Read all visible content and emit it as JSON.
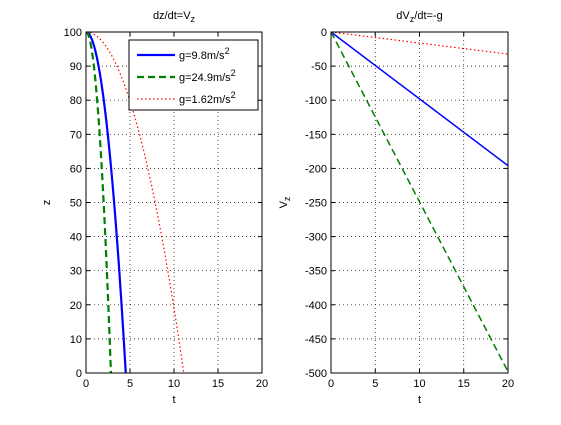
{
  "chart_data": [
    {
      "type": "line",
      "title": "dz/dt=V",
      "title_sub": "z",
      "xlabel": "t",
      "ylabel": "z",
      "ylabel_sub": "",
      "xlim": [
        0,
        20
      ],
      "ylim": [
        0,
        100
      ],
      "xticks": [
        0,
        5,
        10,
        15,
        20
      ],
      "yticks": [
        0,
        10,
        20,
        30,
        40,
        50,
        60,
        70,
        80,
        90,
        100
      ],
      "grid": true,
      "legend": {
        "location": "top-right",
        "entries": [
          {
            "base": "g=9.8m/s",
            "sup": "2"
          },
          {
            "base": "g=24.9m/s",
            "sup": "2"
          },
          {
            "base": "g=1.62m/s",
            "sup": "2"
          }
        ]
      },
      "series": [
        {
          "g": 9.8,
          "color": "#0000ff",
          "style": "solid",
          "width": 2.2
        },
        {
          "g": 24.9,
          "color": "#007f00",
          "style": "dashed",
          "width": 2.2
        },
        {
          "g": 1.62,
          "color": "#ff0000",
          "style": "dotted",
          "width": 1.2
        }
      ],
      "z0": 100
    },
    {
      "type": "line",
      "title": "dV",
      "title_sub": "z",
      "title_rest": "/dt=-g",
      "xlabel": "t",
      "ylabel": "V",
      "ylabel_sub": "z",
      "xlim": [
        0,
        20
      ],
      "ylim": [
        -500,
        0
      ],
      "xticks": [
        0,
        5,
        10,
        15,
        20
      ],
      "yticks": [
        -500,
        -450,
        -400,
        -350,
        -300,
        -250,
        -200,
        -150,
        -100,
        -50,
        0
      ],
      "grid": true,
      "series": [
        {
          "g": 9.8,
          "color": "#0000ff",
          "style": "solid",
          "width": 1.5
        },
        {
          "g": 24.9,
          "color": "#007f00",
          "style": "dashed",
          "width": 1.5
        },
        {
          "g": 1.62,
          "color": "#ff0000",
          "style": "dotted",
          "width": 1.2
        }
      ]
    }
  ]
}
